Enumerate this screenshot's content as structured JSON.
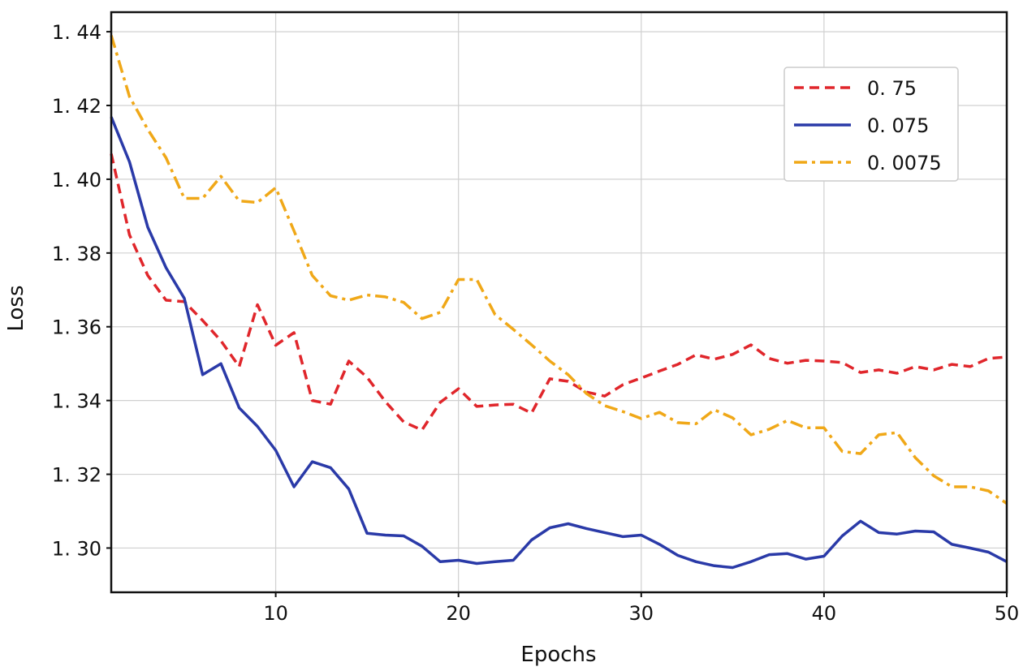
{
  "chart_data": {
    "type": "line",
    "title": "",
    "xlabel": "Epochs",
    "ylabel": "Loss",
    "xlim": [
      1,
      50
    ],
    "ylim": [
      1.288,
      1.4453
    ],
    "grid": true,
    "legend_position": "top-right",
    "x_ticks": [
      10,
      20,
      30,
      40,
      50
    ],
    "x_tick_labels": [
      "10",
      "20",
      "30",
      "40",
      "50"
    ],
    "y_ticks": [
      1.3,
      1.32,
      1.34,
      1.36,
      1.38,
      1.4,
      1.42,
      1.44
    ],
    "y_tick_labels": [
      "1. 30",
      "1. 32",
      "1. 34",
      "1. 36",
      "1. 38",
      "1. 40",
      "1. 42",
      "1. 44"
    ],
    "x": [
      1,
      2,
      3,
      4,
      5,
      6,
      7,
      8,
      9,
      10,
      11,
      12,
      13,
      14,
      15,
      16,
      17,
      18,
      19,
      20,
      21,
      22,
      23,
      24,
      25,
      26,
      27,
      28,
      29,
      30,
      31,
      32,
      33,
      34,
      35,
      36,
      37,
      38,
      39,
      40,
      41,
      42,
      43,
      44,
      45,
      46,
      47,
      48,
      49,
      50
    ],
    "series": [
      {
        "name": "0. 75",
        "color": "#e0262b",
        "dash": "dashed",
        "values": [
          1.4069,
          1.3849,
          1.3739,
          1.3672,
          1.3668,
          1.3617,
          1.3562,
          1.3492,
          1.366,
          1.355,
          1.3584,
          1.34,
          1.339,
          1.3507,
          1.3463,
          1.3397,
          1.3342,
          1.332,
          1.3395,
          1.3432,
          1.3384,
          1.3388,
          1.339,
          1.3366,
          1.3459,
          1.3452,
          1.3423,
          1.3412,
          1.3443,
          1.3461,
          1.348,
          1.3498,
          1.3524,
          1.3512,
          1.3525,
          1.3551,
          1.3514,
          1.3501,
          1.3509,
          1.3507,
          1.3503,
          1.3476,
          1.3483,
          1.3474,
          1.3492,
          1.3483,
          1.3498,
          1.3492,
          1.3514,
          1.3518
        ]
      },
      {
        "name": "0. 075",
        "color": "#2a3aa8",
        "dash": "solid",
        "values": [
          1.4169,
          1.4047,
          1.387,
          1.376,
          1.3677,
          1.347,
          1.35,
          1.338,
          1.333,
          1.3265,
          1.3166,
          1.3234,
          1.3218,
          1.316,
          1.304,
          1.3035,
          1.3033,
          1.3005,
          1.2963,
          1.2967,
          1.2958,
          1.2963,
          1.2967,
          1.3022,
          1.3055,
          1.3066,
          1.3053,
          1.3042,
          1.3031,
          1.3035,
          1.301,
          1.298,
          1.2963,
          1.2952,
          1.2947,
          1.2963,
          1.2982,
          1.2985,
          1.297,
          1.2978,
          1.3033,
          1.3073,
          1.3042,
          1.3038,
          1.3046,
          1.3044,
          1.301,
          1.3,
          1.2989,
          1.2963
        ]
      },
      {
        "name": "0. 0075",
        "color": "#f0a818",
        "dash": "dashdot",
        "values": [
          1.439,
          1.4224,
          1.4135,
          1.4058,
          1.3948,
          1.3948,
          1.4008,
          1.3941,
          1.3937,
          1.3977,
          1.386,
          1.3739,
          1.3684,
          1.3672,
          1.3686,
          1.3681,
          1.3666,
          1.3622,
          1.3639,
          1.3728,
          1.3728,
          1.3633,
          1.3593,
          1.3551,
          1.3507,
          1.347,
          1.3419,
          1.3386,
          1.337,
          1.3351,
          1.3368,
          1.334,
          1.3337,
          1.3375,
          1.3353,
          1.3307,
          1.3322,
          1.3346,
          1.3326,
          1.3326,
          1.3262,
          1.3256,
          1.3307,
          1.3313,
          1.3245,
          1.3196,
          1.3166,
          1.3166,
          1.3155,
          1.3121
        ]
      }
    ]
  }
}
